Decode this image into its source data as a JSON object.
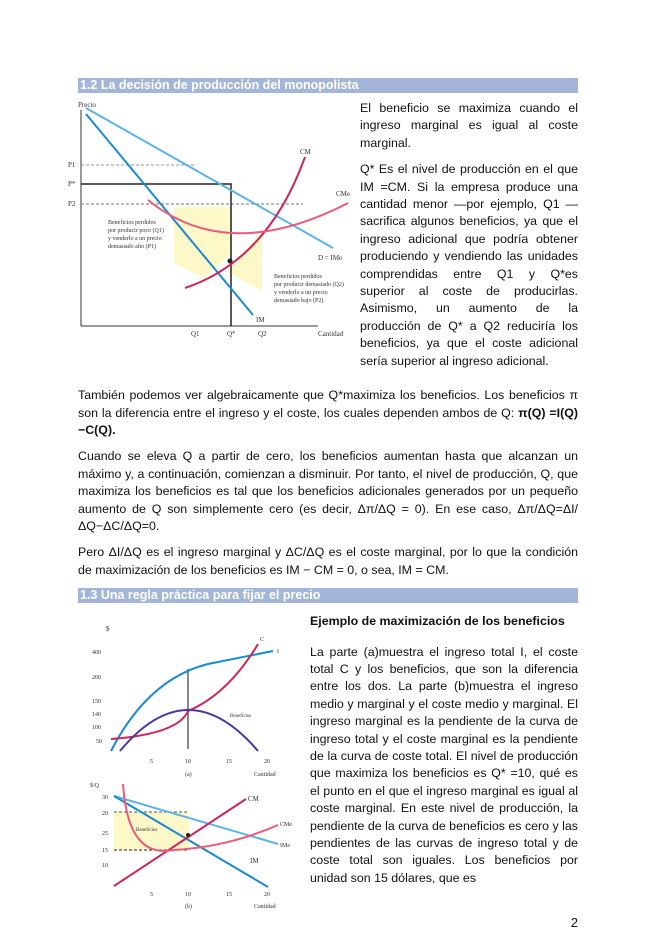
{
  "section1": {
    "title": "1.2 La decisión de producción del monopolista",
    "figure": {
      "y_axis": "Precio",
      "x_axis": "Cantidad",
      "p1": "P1",
      "pstar": "P*",
      "p2": "P2",
      "q1": "Q1",
      "qstar": "Q*",
      "q2": "Q2",
      "cm": "CM",
      "cme": "CMe",
      "demand": "D = IMe",
      "im": "IM",
      "note_left": [
        "Beneficios perdidos",
        "por producir poco (Q1)",
        "y venderlo a un precio",
        "demasiado alto (P1)"
      ],
      "note_right": [
        "Beneficios perdidos",
        "por producir demasiado (Q2)",
        "y venderlo a un precio",
        "demasiado bajo (P2)"
      ]
    },
    "side_paragraphs": [
      "El beneficio se maximiza cuando el ingreso marginal es igual al coste marginal.",
      "Q* Es el nivel de producción en el que IM =CM. Si la empresa produce una cantidad menor —por ejemplo, Q1 — sacrifica algunos beneficios, ya que el ingreso adicional que podría obtener produciendo y vendiendo las unidades comprendidas entre Q1 y Q*es superior al coste de producirlas. Asimismo, un aumento de la producción de Q* a Q2 reduciría los beneficios, ya que el coste adicional sería superior al ingreso adicional."
    ],
    "paragraph1": "También podemos ver algebraicamente que Q*maximiza los beneficios. Los beneficios π son la diferencia entre el ingreso y el coste, los cuales dependen ambos de Q: ",
    "paragraph1_bold": "π(Q) =I(Q) −C(Q).",
    "paragraph2": "Cuando se eleva Q a partir de cero, los beneficios aumentan hasta que alcanzan un máximo y, a continuación, comienzan a disminuir. Por tanto, el nivel de producción, Q, que maximiza los beneficios es tal que los beneficios adicionales generados por un pequeño aumento de Q son simplemente cero (es decir, Δπ/ΔQ = 0). En ese caso, Δπ/ΔQ=ΔI/ΔQ−ΔC/ΔQ=0.",
    "paragraph3": "Pero ΔI/ΔQ es el ingreso marginal y ΔC/ΔQ es el coste marginal, por lo que la condición de maximización de los beneficios es IM − CM = 0, o sea, IM = CM."
  },
  "section2": {
    "title": "1.3 Una regla práctica para fijar el precio",
    "figure_a": {
      "y_unit": "$",
      "y_ticks": [
        "400",
        "200",
        "150",
        "100",
        "50"
      ],
      "y_tick_extra": "140",
      "x_ticks": [
        "5",
        "10",
        "15",
        "20"
      ],
      "x_axis": "Cantidad",
      "label": "(a)",
      "i": "I",
      "c": "C",
      "profit": "Beneficios"
    },
    "figure_b": {
      "y_unit": "$/Q",
      "y_ticks": [
        "30",
        "20",
        "15",
        "10"
      ],
      "y_tick_extra": "25",
      "x_ticks": [
        "5",
        "10",
        "15",
        "20"
      ],
      "x_axis": "Cantidad",
      "label": "(b)",
      "cm": "CM",
      "cme": "CMe",
      "ime": "IMe",
      "im": "IM",
      "profit": "Beneficios"
    },
    "example_title": "Ejemplo de maximización de los beneficios",
    "example_text": "La parte (a)muestra el ingreso total I, el coste total C y los beneficios, que son la diferencia entre los dos. La parte (b)muestra el ingreso medio y marginal y el coste medio y marginal. El ingreso marginal es la pendiente de la curva de ingreso total y el coste marginal es la pendiente de la curva de coste total. El nivel de producción que maximiza los beneficios es Q* =10, qué es el punto en el que el ingreso marginal es igual al coste marginal. En este nivel de producción, la pendiente de la curva de beneficios es cero y las pendientes de las curvas de ingreso total y de coste total son iguales. Los beneficios por unidad son 15 dólares, que es"
  },
  "page_number": "2",
  "colors": {
    "header_bar": "#a3b6d9",
    "demand": "#5ab4e8",
    "marginal_revenue": "#1a8ad4",
    "marginal_cost": "#d0245a",
    "average_cost": "#ee5a7a",
    "profit_curve": "#4a3aa0",
    "profit_area": "#fdf8c8"
  }
}
